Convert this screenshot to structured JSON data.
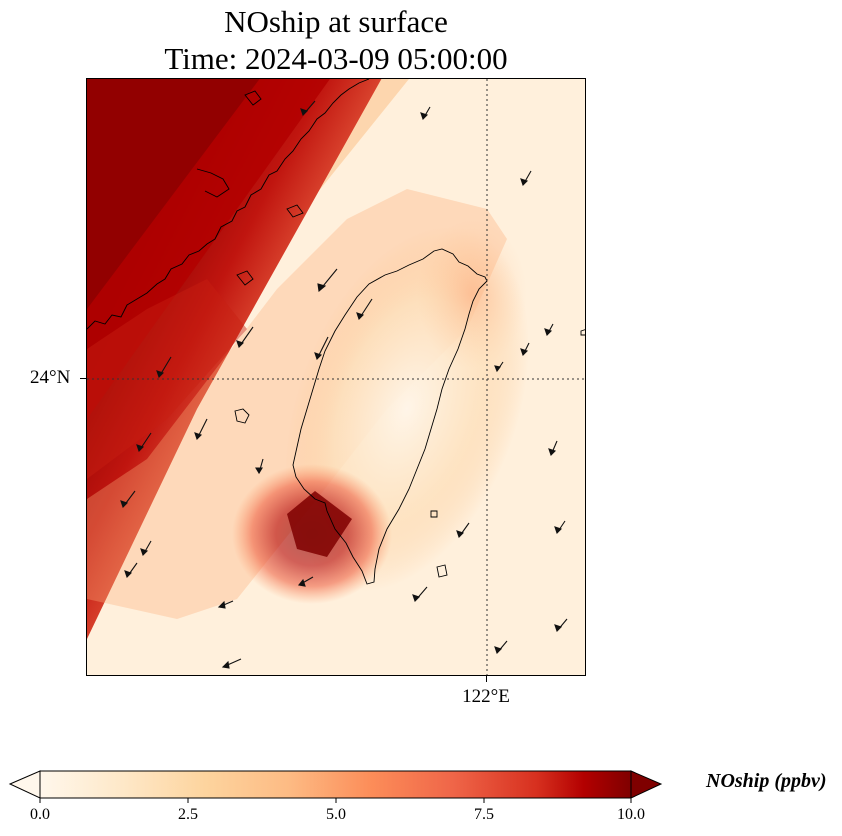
{
  "title": {
    "line1": "NOship at surface",
    "line2": "Time: 2024-03-09 05:00:00"
  },
  "map": {
    "lat_label": "24°N",
    "lon_label": "122°E",
    "colormap": [
      "#fff5e6",
      "#fdd49e",
      "#fdbb84",
      "#fc8d59",
      "#ef6548",
      "#d7301f",
      "#b30000",
      "#7f0000"
    ],
    "coastline_color": "#000000",
    "gridline_style": "dotted"
  },
  "colorbar": {
    "label": "NOship (ppbv)",
    "ticks": [
      "0.0",
      "2.5",
      "5.0",
      "7.5",
      "10.0"
    ],
    "min": 0,
    "max": 10,
    "extend": "both"
  }
}
